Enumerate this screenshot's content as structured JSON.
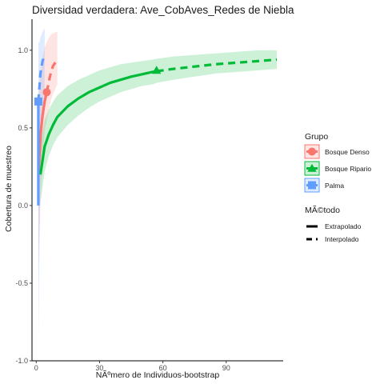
{
  "chart_data": {
    "type": "line",
    "title": "Diversidad verdadera: Ave_CobAves_Redes de Niebla",
    "xlabel": "NÃºmero de Individuos-bootstrap",
    "ylabel": "Cobertura de muestreo",
    "xlim": [
      -2,
      117
    ],
    "ylim": [
      -1.0,
      1.2
    ],
    "x_ticks": [
      "0",
      "30",
      "60",
      "90"
    ],
    "x_tick_values": [
      0,
      30,
      60,
      90
    ],
    "y_ticks": [
      "-1.0",
      "-0.5",
      "0.0",
      "0.5",
      "1.0"
    ],
    "y_tick_values": [
      -1.0,
      -0.5,
      0.0,
      0.5,
      1.0
    ],
    "grid": false,
    "legend_position": "right",
    "legend_groups": {
      "title": "Grupo",
      "items": [
        "Bosque Denso",
        "Bosque Ripario",
        "Palma"
      ]
    },
    "legend_methods": {
      "title": "MÃ©todo",
      "items": [
        "Extrapolado",
        "Interpolado"
      ]
    },
    "series": [
      {
        "name": "Bosque Denso",
        "color": "#F8766D",
        "observed": {
          "x": 5,
          "y": 0.73
        },
        "interpolated": {
          "x": [
            1,
            2,
            3,
            4,
            5
          ],
          "y": [
            0.18,
            0.45,
            0.58,
            0.67,
            0.73
          ]
        },
        "extrapolated": {
          "x": [
            5,
            6,
            7,
            8,
            10
          ],
          "y": [
            0.73,
            0.8,
            0.86,
            0.9,
            0.94
          ]
        },
        "ci_lower": [
          -0.4,
          0.0,
          0.3,
          0.48,
          0.55,
          0.62,
          0.68,
          0.72,
          0.78
        ],
        "ci_upper": [
          0.7,
          0.85,
          0.95,
          1.02,
          1.05,
          1.08,
          1.1,
          1.11,
          1.12
        ],
        "ci_x": [
          1,
          2,
          3,
          4,
          5,
          6,
          7,
          8,
          10
        ]
      },
      {
        "name": "Bosque Ripario",
        "color": "#00BA38",
        "observed": {
          "x": 57,
          "y": 0.87
        },
        "interpolated": {
          "x": [
            2,
            4,
            6,
            8,
            10,
            15,
            20,
            25,
            30,
            35,
            40,
            45,
            50,
            55,
            57
          ],
          "y": [
            0.2,
            0.38,
            0.46,
            0.52,
            0.57,
            0.64,
            0.69,
            0.73,
            0.76,
            0.79,
            0.81,
            0.83,
            0.845,
            0.86,
            0.865
          ]
        },
        "extrapolated": {
          "x": [
            57,
            65,
            75,
            85,
            95,
            105,
            114
          ],
          "y": [
            0.865,
            0.88,
            0.895,
            0.91,
            0.92,
            0.93,
            0.94
          ]
        },
        "ci_x": [
          2,
          4,
          6,
          8,
          10,
          15,
          20,
          25,
          30,
          35,
          40,
          45,
          50,
          55,
          57,
          65,
          75,
          85,
          95,
          105,
          114
        ],
        "ci_lower": [
          0.02,
          0.22,
          0.32,
          0.39,
          0.44,
          0.52,
          0.58,
          0.63,
          0.67,
          0.7,
          0.73,
          0.75,
          0.77,
          0.78,
          0.79,
          0.81,
          0.83,
          0.85,
          0.86,
          0.87,
          0.88
        ],
        "ci_upper": [
          0.4,
          0.55,
          0.62,
          0.67,
          0.71,
          0.77,
          0.81,
          0.84,
          0.87,
          0.89,
          0.91,
          0.92,
          0.93,
          0.94,
          0.945,
          0.96,
          0.97,
          0.98,
          0.99,
          1.0,
          1.0
        ]
      },
      {
        "name": "Palma",
        "color": "#619CFF",
        "observed": {
          "x": 1,
          "y": 0.67
        },
        "interpolated": {
          "x": [
            1,
            1
          ],
          "y": [
            0.0,
            0.67
          ]
        },
        "extrapolated": {
          "x": [
            1,
            2,
            3,
            4
          ],
          "y": [
            0.67,
            0.85,
            0.93,
            0.97
          ]
        },
        "ci_x": [
          1,
          1.5,
          2,
          3,
          4
        ],
        "ci_lower": [
          -0.9,
          -0.3,
          0.2,
          0.5,
          0.62
        ],
        "ci_upper": [
          1.05,
          1.05,
          1.08,
          1.12,
          1.14
        ]
      }
    ]
  }
}
